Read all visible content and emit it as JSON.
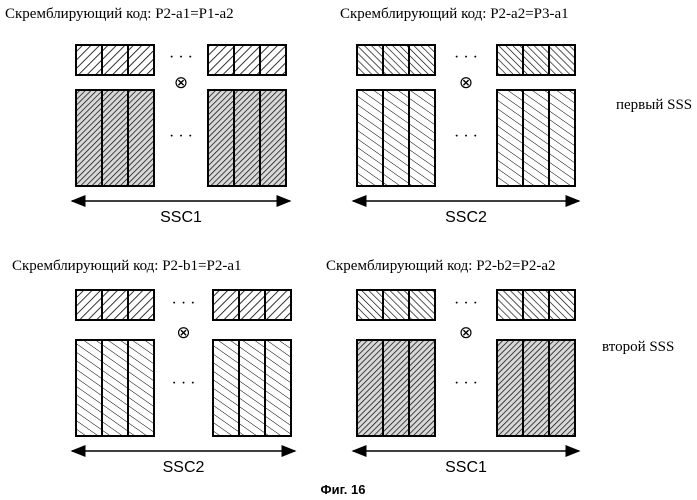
{
  "blocks": [
    {
      "code_label": "Скремблирующий код: P2-a1=P1-a2",
      "ssc_label": "SSC1",
      "top_pattern": "diag-left",
      "bottom_pattern": "diag-left-dark"
    },
    {
      "code_label": "Скремблирующий код: P2-a2=P3-a1",
      "ssc_label": "SSC2",
      "top_pattern": "diag-right",
      "bottom_pattern": "diag-right-light"
    },
    {
      "code_label": "Скремблирующий код: P2-b1=P2-a1",
      "ssc_label": "SSC2",
      "top_pattern": "diag-left",
      "bottom_pattern": "diag-right-light"
    },
    {
      "code_label": "Скремблирующий код: P2-b2=P2-a2",
      "ssc_label": "SSC1",
      "top_pattern": "diag-right",
      "bottom_pattern": "diag-left-dark"
    }
  ],
  "row_labels": [
    "первый SSS",
    "второй SSS"
  ],
  "ellipsis": "· · ·",
  "multiply_symbol": "⊗",
  "figure_caption": "Фиг. 16"
}
